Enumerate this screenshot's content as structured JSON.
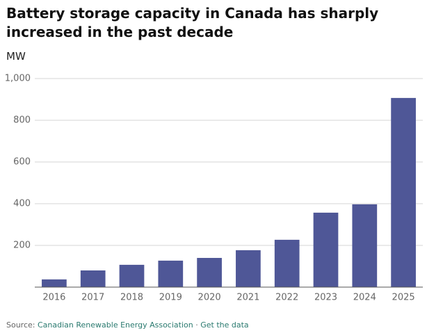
{
  "chart_data": {
    "type": "bar",
    "title": "Battery storage capacity in Canada has sharply increased in the past decade",
    "y_label": "MW",
    "categories": [
      "2016",
      "2017",
      "2018",
      "2019",
      "2020",
      "2021",
      "2022",
      "2023",
      "2024",
      "2025"
    ],
    "values": [
      37,
      80,
      107,
      127,
      140,
      177,
      227,
      357,
      397,
      907
    ],
    "color": "#4f5797",
    "ylim": [
      0,
      1000
    ],
    "yticks": [
      200,
      400,
      600,
      800,
      {
        "value": 1000,
        "label": "1,000"
      }
    ],
    "grid": true,
    "source_label": "Source:",
    "source": "Canadian Renewable Energy Association",
    "separator": "·",
    "data_link": "Get the data"
  }
}
